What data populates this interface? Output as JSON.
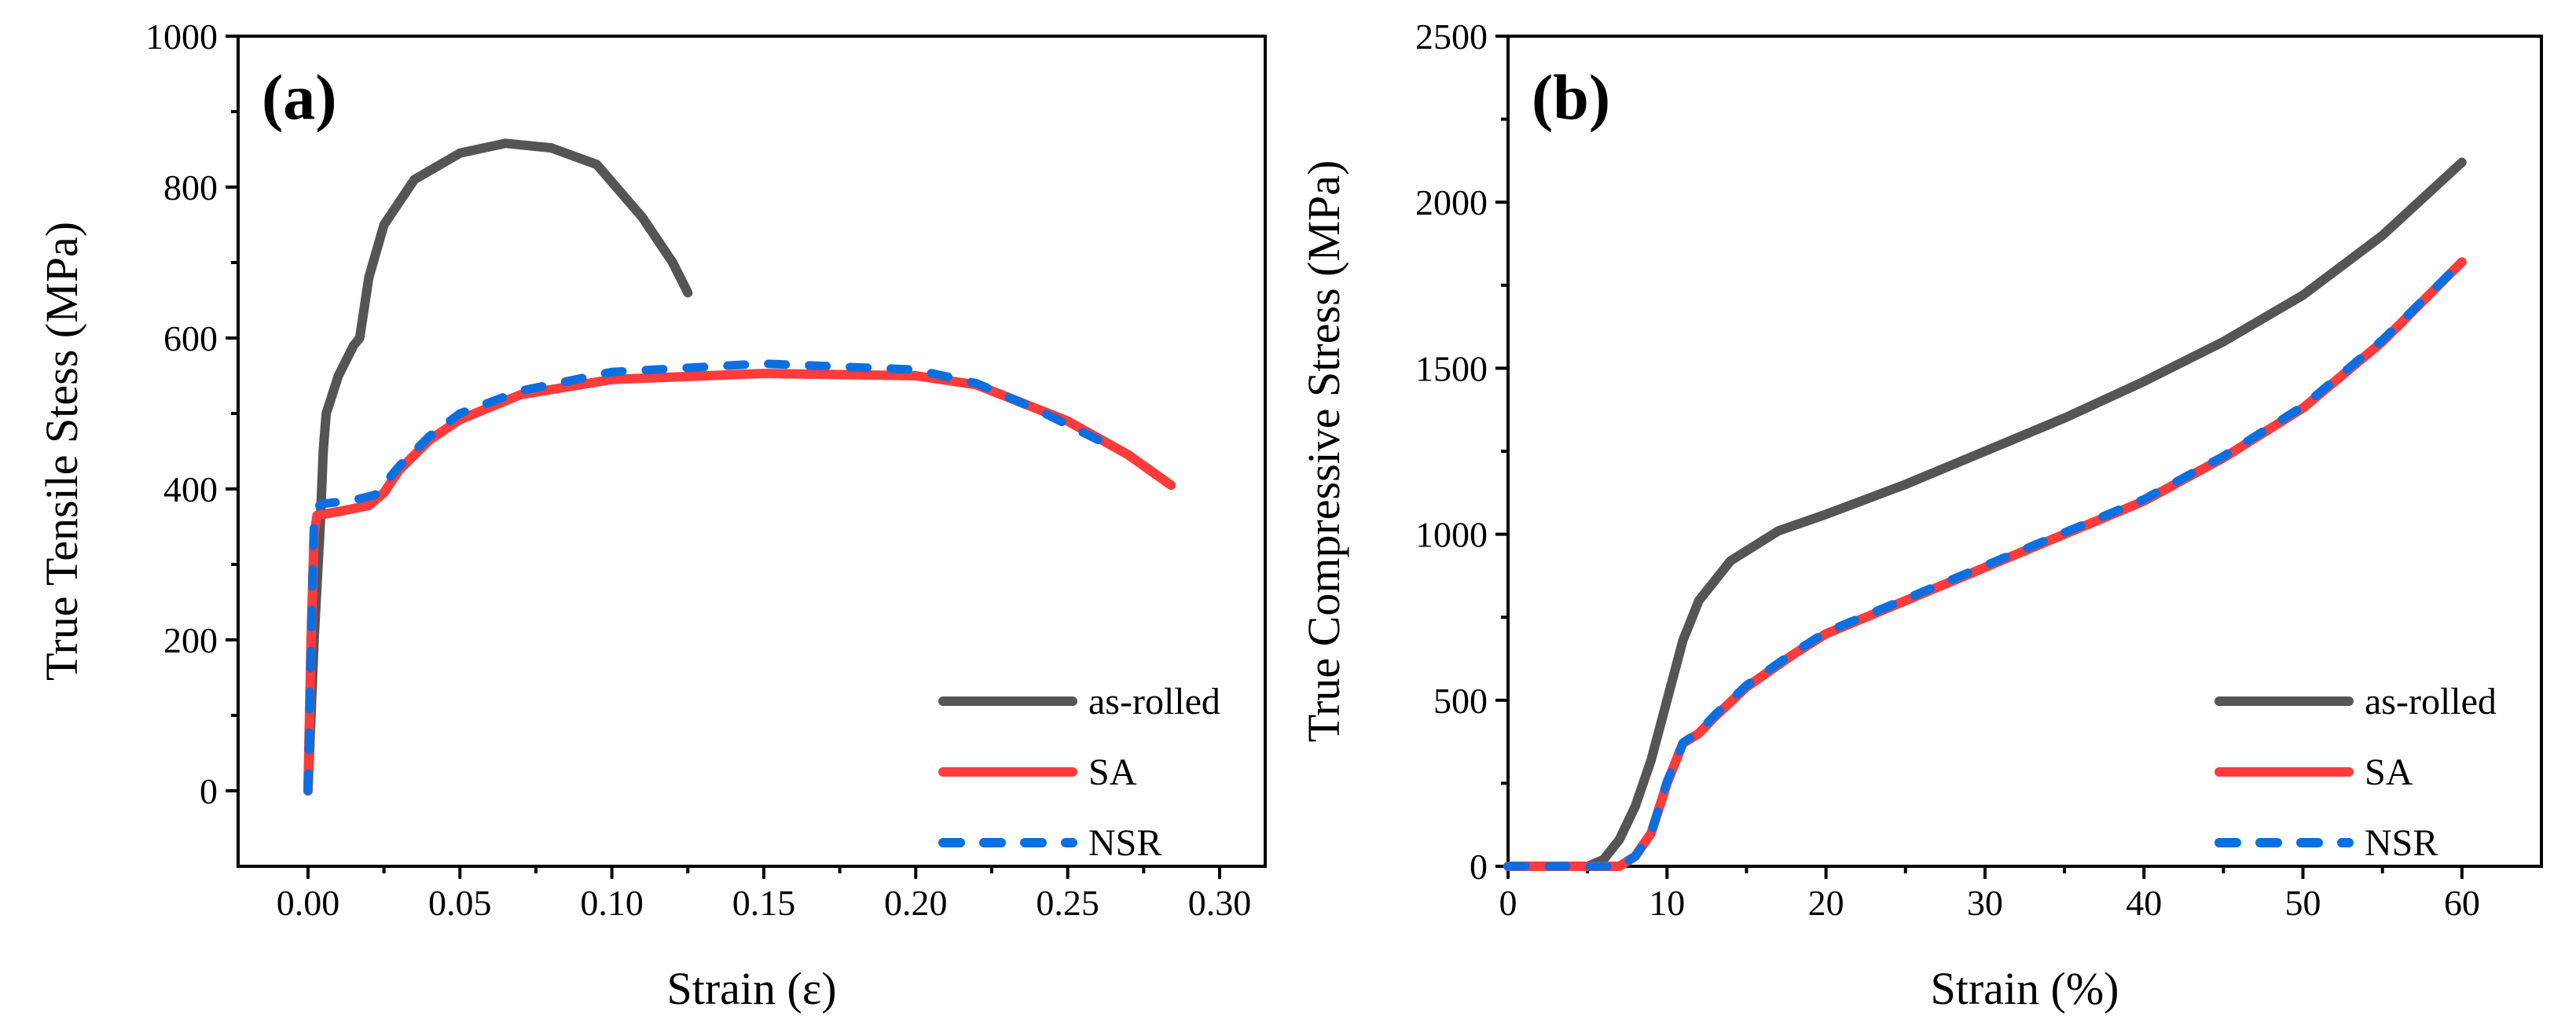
{
  "chart_data": [
    {
      "type": "line",
      "panel_label": "(a)",
      "xlabel": "Strain (ε)",
      "ylabel": "True Tensile Stess (MPa)",
      "xlim": [
        -0.023,
        0.315
      ],
      "ylim": [
        -100,
        1000
      ],
      "xticks": [
        0.0,
        0.05,
        0.1,
        0.15,
        0.2,
        0.25,
        0.3
      ],
      "xtick_labels": [
        "0.00",
        "0.05",
        "0.10",
        "0.15",
        "0.20",
        "0.25",
        "0.30"
      ],
      "yticks": [
        0,
        200,
        400,
        600,
        800,
        1000
      ],
      "ytick_labels": [
        "0",
        "200",
        "400",
        "600",
        "800",
        "1000"
      ],
      "legend_position": "bottom-right",
      "series": [
        {
          "name": "as-rolled",
          "color": "#555555",
          "style": "solid",
          "x": [
            0,
            0.002,
            0.004,
            0.005,
            0.006,
            0.01,
            0.015,
            0.017,
            0.02,
            0.025,
            0.035,
            0.05,
            0.065,
            0.08,
            0.095,
            0.11,
            0.12,
            0.125
          ],
          "y": [
            0,
            200,
            350,
            450,
            500,
            550,
            590,
            600,
            680,
            750,
            810,
            845,
            858,
            852,
            830,
            760,
            700,
            660
          ]
        },
        {
          "name": "SA",
          "color": "#ff3b3b",
          "style": "solid",
          "x": [
            0,
            0.001,
            0.002,
            0.003,
            0.01,
            0.02,
            0.025,
            0.03,
            0.04,
            0.05,
            0.07,
            0.1,
            0.15,
            0.2,
            0.22,
            0.25,
            0.27,
            0.284
          ],
          "y": [
            0,
            200,
            340,
            365,
            370,
            378,
            395,
            425,
            465,
            492,
            525,
            545,
            553,
            550,
            538,
            490,
            445,
            405
          ]
        },
        {
          "name": "NSR",
          "color": "#0a6fe0",
          "style": "dashed",
          "x": [
            0,
            0.001,
            0.002,
            0.004,
            0.015,
            0.022,
            0.03,
            0.04,
            0.05,
            0.07,
            0.1,
            0.15,
            0.2,
            0.22,
            0.24,
            0.26
          ],
          "y": [
            0,
            200,
            360,
            380,
            385,
            392,
            430,
            470,
            500,
            530,
            555,
            566,
            558,
            540,
            505,
            465
          ]
        }
      ]
    },
    {
      "type": "line",
      "panel_label": "(b)",
      "xlabel": "Strain (%)",
      "ylabel": "True Compressive Stress (MPa)",
      "xlim": [
        0,
        65
      ],
      "ylim": [
        0,
        2500
      ],
      "xticks": [
        0,
        10,
        20,
        30,
        40,
        50,
        60
      ],
      "xtick_labels": [
        "0",
        "10",
        "20",
        "30",
        "40",
        "50",
        "60"
      ],
      "yticks": [
        0,
        500,
        1000,
        1500,
        2000,
        2500
      ],
      "ytick_labels": [
        "0",
        "500",
        "1000",
        "1500",
        "2000",
        "2500"
      ],
      "legend_position": "bottom-right",
      "series": [
        {
          "name": "as-rolled",
          "color": "#555555",
          "style": "solid",
          "x": [
            0,
            5,
            6,
            7,
            8,
            9,
            10,
            11,
            12,
            14,
            17,
            20,
            25,
            30,
            35,
            40,
            45,
            50,
            55,
            60
          ],
          "y": [
            0,
            0,
            20,
            80,
            180,
            320,
            500,
            680,
            800,
            920,
            1010,
            1060,
            1150,
            1250,
            1350,
            1460,
            1580,
            1720,
            1900,
            2120
          ]
        },
        {
          "name": "SA",
          "color": "#ff3b3b",
          "style": "solid",
          "x": [
            0,
            7,
            8,
            9,
            10,
            11,
            12,
            13,
            15,
            18,
            20,
            25,
            30,
            35,
            40,
            45,
            50,
            55,
            60
          ],
          "y": [
            0,
            0,
            30,
            100,
            250,
            370,
            400,
            450,
            540,
            640,
            700,
            800,
            900,
            1000,
            1100,
            1230,
            1380,
            1580,
            1820
          ]
        },
        {
          "name": "NSR",
          "color": "#0a6fe0",
          "style": "dashed",
          "x": [
            0,
            7,
            8,
            9,
            10,
            11,
            12,
            13,
            15,
            18,
            20,
            25,
            30,
            35,
            40,
            45,
            50,
            55,
            60
          ],
          "y": [
            0,
            0,
            30,
            100,
            255,
            372,
            405,
            455,
            545,
            645,
            705,
            805,
            905,
            1005,
            1105,
            1235,
            1385,
            1585,
            1820
          ]
        }
      ]
    }
  ]
}
